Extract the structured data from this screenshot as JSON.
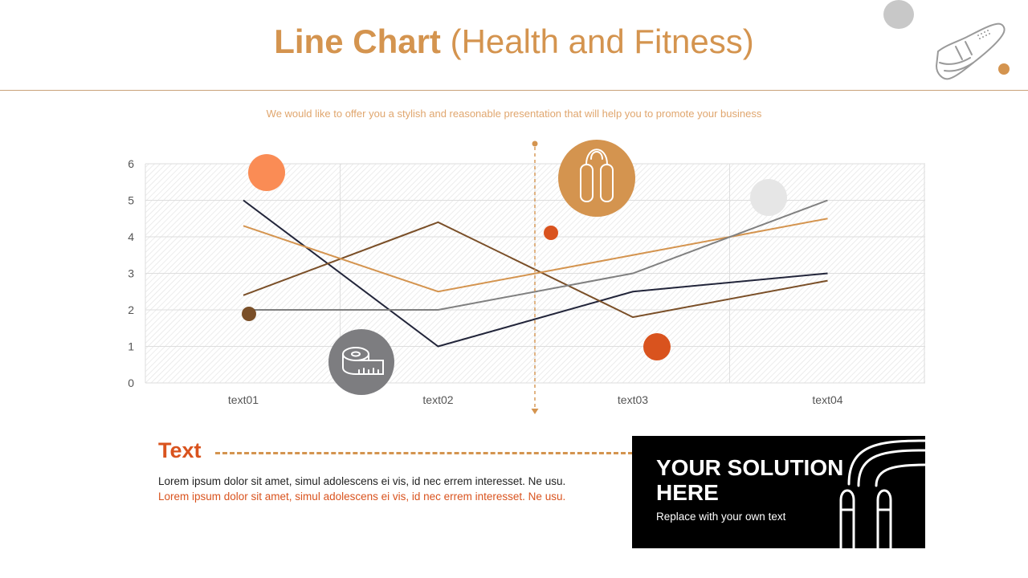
{
  "header": {
    "title_bold": "Line Chart",
    "title_rest": "(Health and Fitness)",
    "subtitle": "We would like to offer you a stylish and reasonable presentation that will help you to promote your business"
  },
  "chart_data": {
    "type": "line",
    "categories": [
      "text01",
      "text02",
      "text03",
      "text04"
    ],
    "series": [
      {
        "values": [
          5,
          1,
          2.5,
          3
        ],
        "color": "#22253a"
      },
      {
        "values": [
          2.4,
          4.4,
          1.8,
          2.8
        ],
        "color": "#7a4f28"
      },
      {
        "values": [
          4.3,
          2.5,
          3.5,
          4.5
        ],
        "color": "#d4944f"
      },
      {
        "values": [
          2,
          2,
          3,
          5
        ],
        "color": "#808080"
      }
    ],
    "ylim": [
      0,
      6
    ],
    "yticks": [
      "0",
      "1",
      "2",
      "3",
      "4",
      "5",
      "6"
    ],
    "grid": true,
    "title": "",
    "xlabel": "",
    "ylabel": ""
  },
  "icons": {
    "top_right": "sneaker-icon",
    "tape": "measuring-tape-icon",
    "jumprope": "jump-rope-icon"
  },
  "colors": {
    "accent": "#d4944f",
    "highlight": "#d9531e",
    "gray": "#7d7d80"
  },
  "text_block": {
    "heading": "Text",
    "body_dark": "Lorem ipsum dolor sit amet, simul adolescens ei vis, id nec errem interesset. Ne usu.",
    "body_accent": "Lorem ipsum dolor sit amet, simul adolescens ei vis, id nec errem interesset. Ne usu."
  },
  "solution": {
    "title": "YOUR SOLUTION HERE",
    "subtitle": "Replace with your own text"
  }
}
